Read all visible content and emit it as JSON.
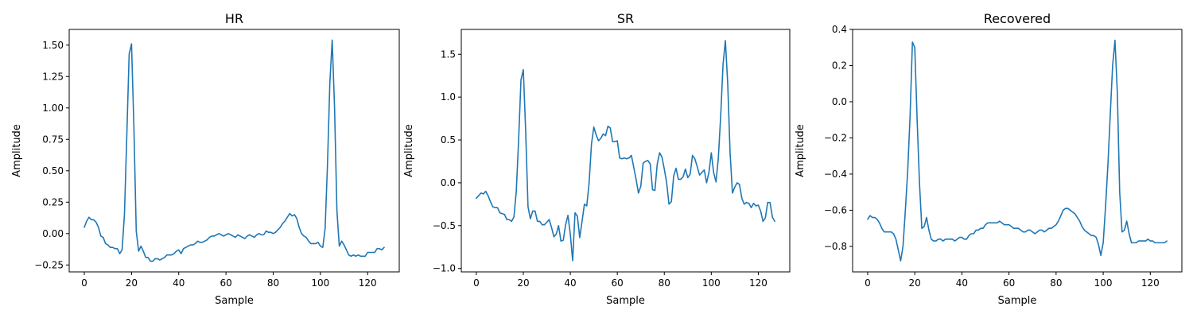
{
  "chart_data": [
    {
      "type": "line",
      "title": "HR",
      "xlabel": "Sample",
      "ylabel": "Amplitude",
      "xlim": [
        -6.4,
        133.4
      ],
      "ylim": [
        -0.305,
        1.625
      ],
      "xticks": [
        0,
        20,
        40,
        60,
        80,
        100,
        120
      ],
      "yticks": [
        -0.25,
        0.0,
        0.25,
        0.5,
        0.75,
        1.0,
        1.25,
        1.5
      ],
      "ytick_labels": [
        "−0.25",
        "0.00",
        "0.25",
        "0.50",
        "0.75",
        "1.00",
        "1.25",
        "1.50"
      ],
      "grid": false,
      "color": "#1f77b4",
      "series": [
        {
          "values": [
            0.05,
            0.1,
            0.13,
            0.11,
            0.11,
            0.09,
            0.05,
            -0.02,
            -0.03,
            -0.08,
            -0.09,
            -0.11,
            -0.11,
            -0.12,
            -0.12,
            -0.16,
            -0.13,
            0.15,
            0.78,
            1.43,
            1.51,
            0.85,
            0.02,
            -0.14,
            -0.1,
            -0.14,
            -0.19,
            -0.19,
            -0.22,
            -0.22,
            -0.2,
            -0.2,
            -0.21,
            -0.2,
            -0.19,
            -0.17,
            -0.17,
            -0.17,
            -0.16,
            -0.14,
            -0.13,
            -0.16,
            -0.12,
            -0.11,
            -0.1,
            -0.09,
            -0.09,
            -0.08,
            -0.06,
            -0.07,
            -0.07,
            -0.06,
            -0.05,
            -0.03,
            -0.02,
            -0.02,
            -0.01,
            -0.0,
            -0.01,
            -0.02,
            -0.01,
            -0.0,
            -0.01,
            -0.02,
            -0.03,
            -0.01,
            -0.02,
            -0.03,
            -0.04,
            -0.02,
            -0.01,
            -0.02,
            -0.03,
            -0.01,
            -0.0,
            -0.01,
            -0.01,
            0.02,
            0.01,
            0.01,
            0.0,
            0.01,
            0.03,
            0.05,
            0.08,
            0.1,
            0.13,
            0.16,
            0.14,
            0.15,
            0.12,
            0.05,
            0.0,
            -0.02,
            -0.03,
            -0.06,
            -0.08,
            -0.08,
            -0.08,
            -0.07,
            -0.1,
            -0.11,
            0.04,
            0.55,
            1.2,
            1.54,
            1.0,
            0.18,
            -0.1,
            -0.06,
            -0.09,
            -0.13,
            -0.17,
            -0.18,
            -0.17,
            -0.18,
            -0.17,
            -0.18,
            -0.18,
            -0.18,
            -0.15,
            -0.15,
            -0.15,
            -0.15,
            -0.12,
            -0.12,
            -0.13,
            -0.11
          ]
        }
      ]
    },
    {
      "type": "line",
      "title": "SR",
      "xlabel": "Sample",
      "ylabel": "Amplitude",
      "xlim": [
        -6.4,
        133.4
      ],
      "ylim": [
        -1.04,
        1.79
      ],
      "xticks": [
        0,
        20,
        40,
        60,
        80,
        100,
        120
      ],
      "yticks": [
        -1.0,
        -0.5,
        0.0,
        0.5,
        1.0,
        1.5
      ],
      "ytick_labels": [
        "−1.0",
        "−0.5",
        "0.0",
        "0.5",
        "1.0",
        "1.5"
      ],
      "grid": false,
      "color": "#1f77b4",
      "series": [
        {
          "values": [
            -0.18,
            -0.15,
            -0.12,
            -0.13,
            -0.1,
            -0.15,
            -0.22,
            -0.28,
            -0.29,
            -0.29,
            -0.35,
            -0.36,
            -0.37,
            -0.43,
            -0.43,
            -0.45,
            -0.4,
            -0.1,
            0.5,
            1.2,
            1.32,
            0.6,
            -0.28,
            -0.42,
            -0.33,
            -0.33,
            -0.45,
            -0.45,
            -0.49,
            -0.49,
            -0.46,
            -0.43,
            -0.52,
            -0.63,
            -0.6,
            -0.5,
            -0.68,
            -0.67,
            -0.49,
            -0.38,
            -0.6,
            -0.91,
            -0.35,
            -0.39,
            -0.64,
            -0.45,
            -0.25,
            -0.27,
            0.0,
            0.45,
            0.65,
            0.56,
            0.49,
            0.52,
            0.57,
            0.55,
            0.66,
            0.64,
            0.48,
            0.48,
            0.49,
            0.29,
            0.28,
            0.29,
            0.28,
            0.29,
            0.32,
            0.18,
            0.04,
            -0.12,
            -0.04,
            0.23,
            0.25,
            0.26,
            0.22,
            -0.08,
            -0.09,
            0.22,
            0.35,
            0.3,
            0.16,
            0.0,
            -0.25,
            -0.22,
            0.08,
            0.17,
            0.04,
            0.04,
            0.07,
            0.16,
            0.06,
            0.1,
            0.32,
            0.28,
            0.19,
            0.09,
            0.12,
            0.15,
            0.0,
            0.12,
            0.35,
            0.12,
            0.01,
            0.29,
            0.78,
            1.38,
            1.66,
            1.15,
            0.35,
            -0.12,
            -0.05,
            0.0,
            -0.02,
            -0.18,
            -0.25,
            -0.23,
            -0.24,
            -0.29,
            -0.24,
            -0.27,
            -0.26,
            -0.33,
            -0.45,
            -0.41,
            -0.23,
            -0.23,
            -0.4,
            -0.45
          ]
        }
      ]
    },
    {
      "type": "line",
      "title": "Recovered",
      "xlabel": "Sample",
      "ylabel": "Amplitude",
      "xlim": [
        -6.4,
        133.4
      ],
      "ylim": [
        -0.941,
        0.4
      ],
      "xticks": [
        0,
        20,
        40,
        60,
        80,
        100,
        120
      ],
      "yticks": [
        -0.8,
        -0.6,
        -0.4,
        -0.2,
        0.0,
        0.2,
        0.4
      ],
      "ytick_labels": [
        "−0.8",
        "−0.6",
        "−0.4",
        "−0.2",
        "0.0",
        "0.2",
        "0.4"
      ],
      "grid": false,
      "color": "#1f77b4",
      "series": [
        {
          "values": [
            -0.65,
            -0.63,
            -0.64,
            -0.64,
            -0.65,
            -0.67,
            -0.7,
            -0.72,
            -0.72,
            -0.72,
            -0.72,
            -0.73,
            -0.76,
            -0.82,
            -0.88,
            -0.8,
            -0.6,
            -0.38,
            -0.08,
            0.33,
            0.3,
            -0.1,
            -0.45,
            -0.7,
            -0.69,
            -0.64,
            -0.71,
            -0.76,
            -0.77,
            -0.77,
            -0.76,
            -0.76,
            -0.77,
            -0.76,
            -0.76,
            -0.76,
            -0.76,
            -0.77,
            -0.76,
            -0.75,
            -0.75,
            -0.76,
            -0.76,
            -0.74,
            -0.73,
            -0.73,
            -0.71,
            -0.71,
            -0.7,
            -0.7,
            -0.68,
            -0.67,
            -0.67,
            -0.67,
            -0.67,
            -0.67,
            -0.66,
            -0.67,
            -0.68,
            -0.68,
            -0.68,
            -0.69,
            -0.7,
            -0.7,
            -0.7,
            -0.71,
            -0.72,
            -0.72,
            -0.71,
            -0.71,
            -0.72,
            -0.73,
            -0.72,
            -0.71,
            -0.71,
            -0.72,
            -0.71,
            -0.7,
            -0.7,
            -0.69,
            -0.68,
            -0.66,
            -0.63,
            -0.6,
            -0.59,
            -0.59,
            -0.6,
            -0.61,
            -0.62,
            -0.64,
            -0.66,
            -0.69,
            -0.71,
            -0.72,
            -0.73,
            -0.74,
            -0.74,
            -0.75,
            -0.79,
            -0.85,
            -0.78,
            -0.58,
            -0.35,
            -0.07,
            0.2,
            0.34,
            0.05,
            -0.5,
            -0.72,
            -0.71,
            -0.66,
            -0.73,
            -0.78,
            -0.78,
            -0.78,
            -0.77,
            -0.77,
            -0.77,
            -0.77,
            -0.76,
            -0.77,
            -0.77,
            -0.78,
            -0.78,
            -0.78,
            -0.78,
            -0.78,
            -0.77
          ]
        }
      ]
    }
  ]
}
